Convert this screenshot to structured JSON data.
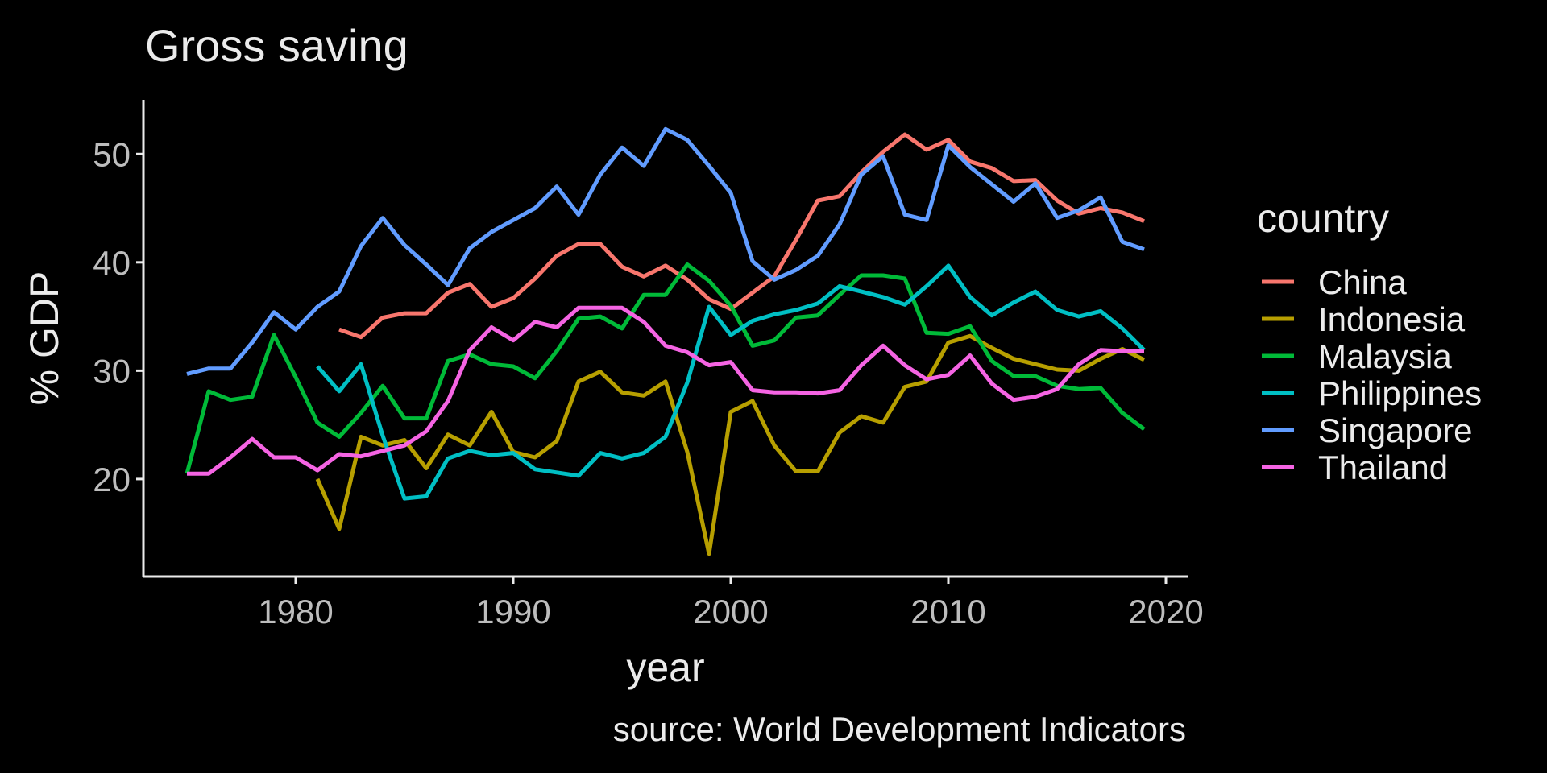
{
  "chart_data": {
    "type": "line",
    "title": "Gross saving",
    "xlabel": "year",
    "ylabel": "% GDP",
    "caption": "source: World Development Indicators",
    "xlim": [
      1973,
      2021
    ],
    "ylim": [
      11,
      55
    ],
    "x_ticks": [
      1980,
      1990,
      2000,
      2010,
      2020
    ],
    "y_ticks": [
      20,
      30,
      40,
      50
    ],
    "grid": false,
    "legend_title": "country",
    "legend_position": "right",
    "series": [
      {
        "name": "China",
        "color": "#F8766D",
        "x": [
          1982,
          1983,
          1984,
          1985,
          1986,
          1987,
          1988,
          1989,
          1990,
          1991,
          1992,
          1993,
          1994,
          1995,
          1996,
          1997,
          1998,
          1999,
          2000,
          2001,
          2002,
          2003,
          2004,
          2005,
          2006,
          2007,
          2008,
          2009,
          2010,
          2011,
          2012,
          2013,
          2014,
          2015,
          2016,
          2017,
          2018,
          2019
        ],
        "values": [
          33.8,
          33.1,
          34.9,
          35.3,
          35.3,
          37.2,
          38.0,
          35.9,
          36.7,
          38.5,
          40.6,
          41.7,
          41.7,
          39.6,
          38.7,
          39.7,
          38.4,
          36.6,
          35.7,
          37.2,
          38.7,
          42.1,
          45.7,
          46.1,
          48.3,
          50.2,
          51.8,
          50.4,
          51.3,
          49.3,
          48.7,
          47.5,
          47.6,
          45.7,
          44.5,
          45.0,
          44.6,
          43.8
        ]
      },
      {
        "name": "Indonesia",
        "color": "#B79F00",
        "x": [
          1981,
          1982,
          1983,
          1984,
          1985,
          1986,
          1987,
          1988,
          1989,
          1990,
          1991,
          1992,
          1993,
          1994,
          1995,
          1996,
          1997,
          1998,
          1999,
          2000,
          2001,
          2002,
          2003,
          2004,
          2005,
          2006,
          2007,
          2008,
          2009,
          2010,
          2011,
          2012,
          2013,
          2014,
          2015,
          2016,
          2017,
          2018,
          2019
        ],
        "values": [
          20.0,
          15.4,
          23.9,
          23.1,
          23.6,
          21.0,
          24.1,
          23.1,
          26.2,
          22.5,
          22.0,
          23.5,
          29.0,
          29.9,
          28.0,
          27.7,
          29.0,
          22.5,
          13.1,
          26.2,
          27.2,
          23.1,
          20.7,
          20.7,
          24.3,
          25.8,
          25.2,
          28.5,
          29.0,
          32.6,
          33.2,
          32.1,
          31.1,
          30.6,
          30.1,
          30.0,
          31.1,
          32.0,
          31.0
        ]
      },
      {
        "name": "Malaysia",
        "color": "#00BA38",
        "x": [
          1975,
          1976,
          1977,
          1978,
          1979,
          1980,
          1981,
          1982,
          1983,
          1984,
          1985,
          1986,
          1987,
          1988,
          1989,
          1990,
          1991,
          1992,
          1993,
          1994,
          1995,
          1996,
          1997,
          1998,
          1999,
          2000,
          2001,
          2002,
          2003,
          2004,
          2005,
          2006,
          2007,
          2008,
          2009,
          2010,
          2011,
          2012,
          2013,
          2014,
          2015,
          2016,
          2017,
          2018,
          2019
        ],
        "values": [
          20.5,
          28.1,
          27.3,
          27.6,
          33.3,
          29.4,
          25.2,
          23.9,
          26.1,
          28.6,
          25.6,
          25.6,
          30.9,
          31.5,
          30.6,
          30.4,
          29.3,
          31.8,
          34.8,
          35.0,
          33.9,
          37.0,
          37.0,
          39.8,
          38.3,
          36.0,
          32.3,
          32.8,
          34.9,
          35.1,
          37.0,
          38.8,
          38.8,
          38.5,
          33.5,
          33.4,
          34.1,
          30.9,
          29.5,
          29.5,
          28.6,
          28.3,
          28.4,
          26.1,
          24.6
        ]
      },
      {
        "name": "Philippines",
        "color": "#00BFC4",
        "x": [
          1981,
          1982,
          1983,
          1984,
          1985,
          1986,
          1987,
          1988,
          1989,
          1990,
          1991,
          1992,
          1993,
          1994,
          1995,
          1996,
          1997,
          1998,
          1999,
          2000,
          2001,
          2002,
          2003,
          2004,
          2005,
          2006,
          2007,
          2008,
          2009,
          2010,
          2011,
          2012,
          2013,
          2014,
          2015,
          2016,
          2017,
          2018,
          2019
        ],
        "values": [
          30.4,
          28.1,
          30.6,
          24.0,
          18.2,
          18.4,
          21.9,
          22.6,
          22.2,
          22.4,
          20.9,
          20.6,
          20.3,
          22.4,
          21.9,
          22.4,
          23.9,
          28.9,
          35.9,
          33.3,
          34.6,
          35.2,
          35.6,
          36.2,
          37.8,
          37.3,
          36.8,
          36.1,
          37.8,
          39.7,
          36.8,
          35.1,
          36.3,
          37.3,
          35.6,
          35.0,
          35.5,
          33.9,
          31.9
        ]
      },
      {
        "name": "Singapore",
        "color": "#619CFF",
        "x": [
          1975,
          1976,
          1977,
          1978,
          1979,
          1980,
          1981,
          1982,
          1983,
          1984,
          1985,
          1986,
          1987,
          1988,
          1989,
          1990,
          1991,
          1992,
          1993,
          1994,
          1995,
          1996,
          1997,
          1998,
          1999,
          2000,
          2001,
          2002,
          2003,
          2004,
          2005,
          2006,
          2007,
          2008,
          2009,
          2010,
          2011,
          2012,
          2013,
          2014,
          2015,
          2016,
          2017,
          2018,
          2019
        ],
        "values": [
          29.7,
          30.2,
          30.2,
          32.6,
          35.4,
          33.8,
          35.9,
          37.3,
          41.5,
          44.1,
          41.6,
          39.8,
          37.9,
          41.3,
          42.8,
          43.9,
          45.0,
          47.0,
          44.4,
          48.1,
          50.6,
          48.9,
          52.3,
          51.3,
          48.9,
          46.4,
          40.1,
          38.4,
          39.3,
          40.6,
          43.5,
          48.1,
          49.8,
          44.4,
          43.9,
          50.8,
          48.8,
          47.2,
          45.6,
          47.3,
          44.1,
          44.8,
          46.0,
          41.9,
          41.2
        ]
      },
      {
        "name": "Thailand",
        "color": "#F564E3",
        "x": [
          1975,
          1976,
          1977,
          1978,
          1979,
          1980,
          1981,
          1982,
          1983,
          1984,
          1985,
          1986,
          1987,
          1988,
          1989,
          1990,
          1991,
          1992,
          1993,
          1994,
          1995,
          1996,
          1997,
          1998,
          1999,
          2000,
          2001,
          2002,
          2003,
          2004,
          2005,
          2006,
          2007,
          2008,
          2009,
          2010,
          2011,
          2012,
          2013,
          2014,
          2015,
          2016,
          2017,
          2018,
          2019
        ],
        "values": [
          20.5,
          20.5,
          22.0,
          23.7,
          22.0,
          22.0,
          20.8,
          22.3,
          22.1,
          22.6,
          23.1,
          24.4,
          27.2,
          31.9,
          34.0,
          32.8,
          34.5,
          34.0,
          35.8,
          35.8,
          35.8,
          34.5,
          32.3,
          31.7,
          30.5,
          30.8,
          28.2,
          28.0,
          28.0,
          27.9,
          28.2,
          30.5,
          32.3,
          30.5,
          29.2,
          29.6,
          31.4,
          28.8,
          27.3,
          27.6,
          28.3,
          30.6,
          31.9,
          31.8,
          31.8
        ]
      }
    ]
  }
}
